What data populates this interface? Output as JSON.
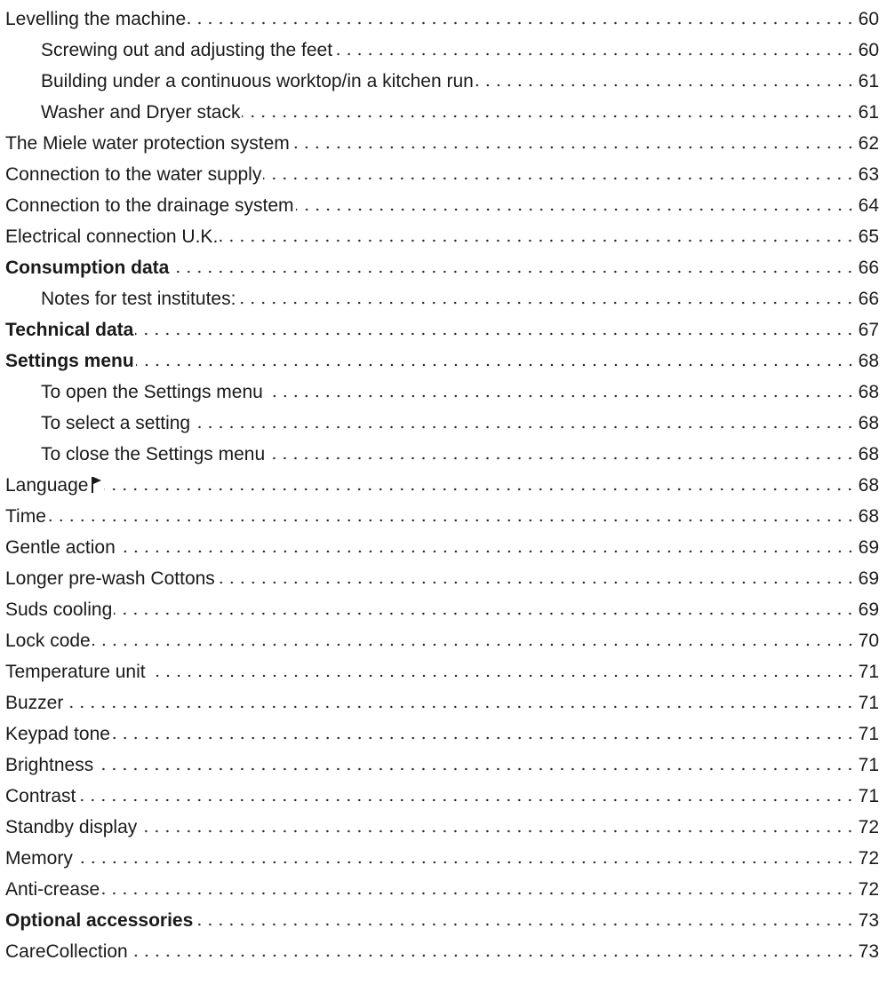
{
  "toc": {
    "entries": [
      {
        "label": "Levelling the machine",
        "page": "60",
        "level": 1,
        "bold": false
      },
      {
        "label": "Screwing out and adjusting the feet",
        "page": "60",
        "level": 2,
        "bold": false
      },
      {
        "label": "Building under a continuous worktop/in a kitchen run",
        "page": "61",
        "level": 2,
        "bold": false
      },
      {
        "label": "Washer and Dryer stack",
        "page": "61",
        "level": 2,
        "bold": false
      },
      {
        "label": "The Miele water protection system",
        "page": "62",
        "level": 1,
        "bold": false
      },
      {
        "label": "Connection to the water supply",
        "page": "63",
        "level": 1,
        "bold": false
      },
      {
        "label": "Connection to the drainage system",
        "page": "64",
        "level": 1,
        "bold": false
      },
      {
        "label": "Electrical connection U.K.",
        "page": "65",
        "level": 1,
        "bold": false
      },
      {
        "label": "Consumption data",
        "page": "66",
        "level": 1,
        "bold": true
      },
      {
        "label": "Notes for test institutes:",
        "page": "66",
        "level": 2,
        "bold": false
      },
      {
        "label": "Technical data",
        "page": "67",
        "level": 1,
        "bold": true
      },
      {
        "label": "Settings menu",
        "page": "68",
        "level": 1,
        "bold": true
      },
      {
        "label": "To open the Settings menu",
        "page": "68",
        "level": 2,
        "bold": false
      },
      {
        "label": "To select a setting",
        "page": "68",
        "level": 2,
        "bold": false
      },
      {
        "label": "To close the Settings menu",
        "page": "68",
        "level": 2,
        "bold": false
      },
      {
        "label": "Language",
        "page": "68",
        "level": 1,
        "bold": false,
        "icon": "flag-icon"
      },
      {
        "label": "Time",
        "page": "68",
        "level": 1,
        "bold": false
      },
      {
        "label": "Gentle action",
        "page": "69",
        "level": 1,
        "bold": false
      },
      {
        "label": "Longer pre-wash Cottons",
        "page": "69",
        "level": 1,
        "bold": false
      },
      {
        "label": "Suds cooling",
        "page": "69",
        "level": 1,
        "bold": false
      },
      {
        "label": "Lock code",
        "page": "70",
        "level": 1,
        "bold": false
      },
      {
        "label": "Temperature unit",
        "page": "71",
        "level": 1,
        "bold": false
      },
      {
        "label": "Buzzer",
        "page": "71",
        "level": 1,
        "bold": false
      },
      {
        "label": "Keypad tone",
        "page": "71",
        "level": 1,
        "bold": false
      },
      {
        "label": "Brightness",
        "page": "71",
        "level": 1,
        "bold": false
      },
      {
        "label": "Contrast",
        "page": "71",
        "level": 1,
        "bold": false
      },
      {
        "label": "Standby display",
        "page": "72",
        "level": 1,
        "bold": false
      },
      {
        "label": "Memory",
        "page": "72",
        "level": 1,
        "bold": false
      },
      {
        "label": "Anti-crease",
        "page": "72",
        "level": 1,
        "bold": false
      },
      {
        "label": "Optional accessories",
        "page": "73",
        "level": 1,
        "bold": true
      },
      {
        "label": "CareCollection",
        "page": "73",
        "level": 1,
        "bold": false
      }
    ]
  }
}
